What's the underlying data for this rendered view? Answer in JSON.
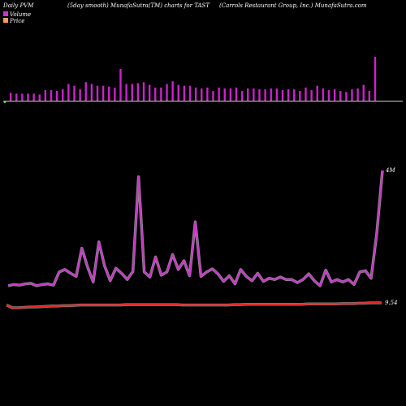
{
  "header": {
    "left": "Daily PVM",
    "center_left": "(5day smooth) MunafaSutra(TM) charts for TAST",
    "right": "(Carrols Restaurant Group, Inc.) MunafaSutra.com"
  },
  "legend": {
    "volume_label": "Volume",
    "price_label": "Price",
    "volume_color": "#cc33cc",
    "price_color": "#ff9966"
  },
  "chart_data": {
    "type": "bar+line",
    "title": "",
    "colors": {
      "volume_bar": "#cc22cc",
      "volume_bar_down": "#44cc44",
      "pvm_line": "#cc33cc",
      "price_line": "#ee2222",
      "baseline": "#cccccc"
    },
    "volume_series": {
      "name": "Volume",
      "values": [
        8,
        9,
        8,
        8,
        8,
        8,
        7,
        12,
        12,
        11,
        13,
        19,
        17,
        13,
        21,
        19,
        17,
        17,
        16,
        15,
        36,
        19,
        19,
        20,
        21,
        18,
        15,
        15,
        19,
        22,
        18,
        17,
        17,
        15,
        14,
        15,
        11,
        15,
        14,
        14,
        15,
        11,
        14,
        14,
        13,
        13,
        14,
        14,
        12,
        13,
        13,
        11,
        15,
        12,
        17,
        14,
        12,
        13,
        11,
        10,
        13,
        14,
        18,
        11,
        50
      ],
      "first_bar_down": true
    },
    "pvm_series": {
      "name": "PVM",
      "values": [
        2.6,
        2.8,
        2.7,
        2.9,
        3.0,
        2.6,
        2.8,
        2.9,
        2.7,
        4.8,
        5.2,
        4.6,
        4.1,
        8.6,
        5.6,
        3.2,
        9.6,
        5.8,
        3.4,
        5.4,
        4.6,
        3.6,
        4.9,
        20.0,
        4.8,
        4.0,
        7.2,
        4.3,
        4.8,
        7.6,
        5.2,
        6.6,
        4.2,
        12.8,
        4.1,
        4.8,
        5.3,
        4.5,
        3.3,
        4.2,
        2.9,
        5.2,
        4.1,
        3.4,
        4.6,
        3.3,
        3.8,
        3.6,
        4.0,
        3.6,
        3.6,
        3.1,
        3.6,
        4.5,
        3.4,
        2.6,
        5.1,
        3.2,
        3.6,
        3.2,
        3.6,
        2.8,
        4.8,
        5.0,
        3.8,
        11.0,
        21.0
      ],
      "end_label": "4M"
    },
    "price_series": {
      "name": "Price",
      "values": [
        0.4,
        0.0,
        0.0,
        0.05,
        0.1,
        0.1,
        0.15,
        0.2,
        0.25,
        0.25,
        0.3,
        0.3,
        0.35,
        0.4,
        0.4,
        0.4,
        0.4,
        0.4,
        0.4,
        0.4,
        0.4,
        0.45,
        0.45,
        0.45,
        0.45,
        0.45,
        0.45,
        0.45,
        0.45,
        0.45,
        0.45,
        0.4,
        0.4,
        0.4,
        0.4,
        0.4,
        0.4,
        0.4,
        0.4,
        0.4,
        0.45,
        0.45,
        0.5,
        0.5,
        0.5,
        0.5,
        0.5,
        0.5,
        0.5,
        0.5,
        0.5,
        0.5,
        0.5,
        0.55,
        0.55,
        0.55,
        0.55,
        0.55,
        0.55,
        0.6,
        0.6,
        0.6,
        0.65,
        0.65,
        0.7,
        0.7,
        0.7
      ],
      "end_label": "9.54"
    }
  }
}
